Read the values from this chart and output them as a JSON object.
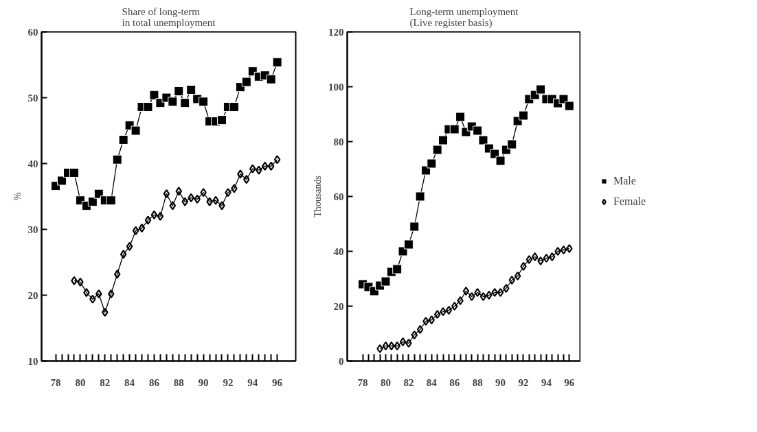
{
  "chart_data": [
    {
      "type": "line",
      "title": "Share of long-term\nin total unemployment",
      "ylabel": "%",
      "xlim": [
        76.85,
        97.5
      ],
      "ylim": [
        10,
        60
      ],
      "xticks": [
        78,
        80,
        82,
        84,
        86,
        88,
        90,
        92,
        94,
        96
      ],
      "yticks": [
        10,
        20,
        30,
        40,
        50,
        60
      ],
      "grid": false,
      "legend": false,
      "series": [
        {
          "color": "#000000",
          "marker": "square",
          "x": [
            78,
            78.5,
            79,
            79.5,
            80,
            80.5,
            81,
            81.5,
            82,
            82.5,
            83,
            83.5,
            84,
            84.5,
            85,
            85.5,
            86,
            86.5,
            87,
            87.5,
            88,
            88.5,
            89,
            89.5,
            90,
            90.5,
            91,
            91.5,
            92,
            92.5,
            93,
            93.5,
            94,
            94.5,
            95,
            95.5,
            96
          ],
          "values": [
            36.6,
            37.4,
            38.6,
            38.6,
            34.4,
            33.6,
            34.2,
            35.4,
            34.4,
            34.4,
            40.6,
            43.6,
            45.8,
            45.0,
            48.6,
            48.6,
            50.4,
            49.2,
            50.0,
            49.4,
            51.0,
            49.2,
            51.2,
            49.8,
            49.4,
            46.4,
            46.4,
            46.6,
            48.6,
            48.6,
            51.6,
            52.4,
            54.0,
            53.2,
            53.4,
            52.8,
            55.4
          ]
        },
        {
          "color": "#000000",
          "marker": "diamond",
          "x": [
            79.5,
            80,
            80.5,
            81,
            81.5,
            82,
            82.5,
            83,
            83.5,
            84,
            84.5,
            85,
            85.5,
            86,
            86.5,
            87,
            87.5,
            88,
            88.5,
            89,
            89.5,
            90,
            90.5,
            91,
            91.5,
            92,
            92.5,
            93,
            93.5,
            94,
            94.5,
            95,
            95.5,
            96
          ],
          "values": [
            22.2,
            22.0,
            20.4,
            19.4,
            20.2,
            17.4,
            20.2,
            23.2,
            26.2,
            27.4,
            29.8,
            30.2,
            31.4,
            32.2,
            32.0,
            35.4,
            33.6,
            35.8,
            34.2,
            34.8,
            34.6,
            35.6,
            34.2,
            34.4,
            33.6,
            35.6,
            36.2,
            38.4,
            37.6,
            39.2,
            39.0,
            39.6,
            39.6,
            40.6
          ]
        }
      ]
    },
    {
      "type": "line",
      "title": "Long-term unemployment\n(Live register basis)",
      "ylabel": "Thousands",
      "xlim": [
        76.65,
        97.0
      ],
      "ylim": [
        0,
        120
      ],
      "xticks": [
        78,
        80,
        82,
        84,
        86,
        88,
        90,
        92,
        94,
        96
      ],
      "yticks": [
        0,
        20,
        40,
        60,
        80,
        100,
        120
      ],
      "grid": false,
      "legend": "right",
      "series": [
        {
          "name": "Male",
          "color": "#000000",
          "marker": "square",
          "x": [
            78,
            78.5,
            79,
            79.5,
            80,
            80.5,
            81,
            81.5,
            82,
            82.5,
            83,
            83.5,
            84,
            84.5,
            85,
            85.5,
            86,
            86.5,
            87,
            87.5,
            88,
            88.5,
            89,
            89.5,
            90,
            90.5,
            91,
            91.5,
            92,
            92.5,
            93,
            93.5,
            94,
            94.5,
            95,
            95.5,
            96
          ],
          "values": [
            28,
            27,
            25.5,
            27.5,
            29,
            32.5,
            33.5,
            40,
            42.5,
            49,
            60,
            69.5,
            72,
            77,
            80.5,
            84.5,
            84.5,
            89,
            83.5,
            85.5,
            84,
            80.5,
            77.5,
            75.5,
            73,
            77,
            79,
            87.5,
            89.5,
            95.5,
            97,
            99,
            95.5,
            95.5,
            94,
            95.5,
            93
          ]
        },
        {
          "name": "Female",
          "color": "#000000",
          "marker": "diamond",
          "x": [
            79.5,
            80,
            80.5,
            81,
            81.5,
            82,
            82.5,
            83,
            83.5,
            84,
            84.5,
            85,
            85.5,
            86,
            86.5,
            87,
            87.5,
            88,
            88.5,
            89,
            89.5,
            90,
            90.5,
            91,
            91.5,
            92,
            92.5,
            93,
            93.5,
            94,
            94.5,
            95,
            95.5,
            96
          ],
          "values": [
            4.5,
            5.5,
            5.5,
            5.5,
            7,
            6.5,
            9.5,
            11.5,
            14.5,
            15,
            17,
            18,
            18.5,
            20,
            22,
            25.5,
            23.5,
            25,
            23.5,
            24,
            25,
            25,
            26.5,
            29.5,
            31,
            34.5,
            37,
            38,
            36.5,
            37.5,
            38,
            40,
            40.5,
            41
          ]
        }
      ]
    }
  ]
}
